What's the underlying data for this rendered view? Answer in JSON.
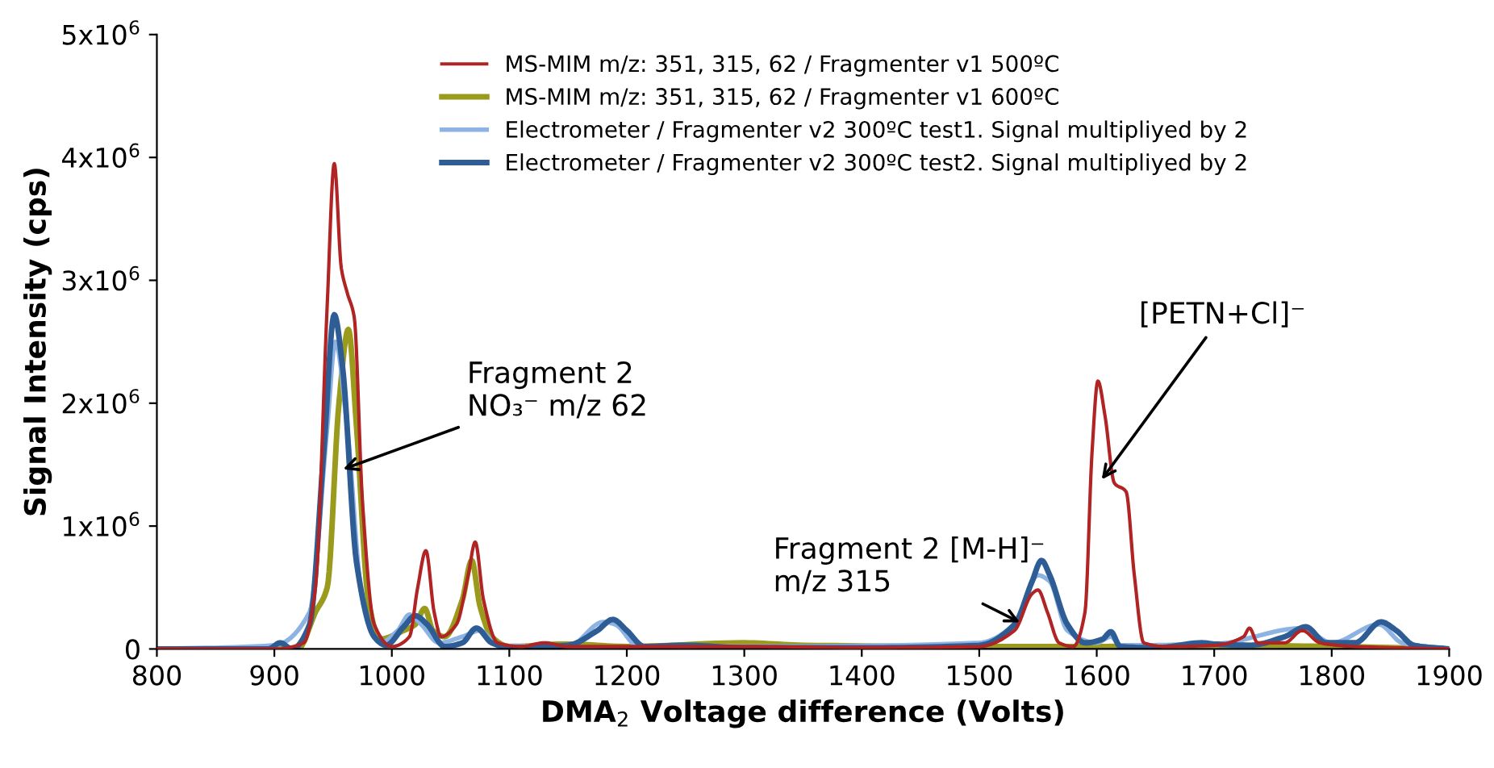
{
  "chart_data": {
    "type": "line",
    "xlabel": "DMA$_{2}$ Voltage difference (Volts)",
    "ylabel": "Signal Intensity (cps)",
    "xlim": [
      800,
      1900
    ],
    "xticks": [
      800,
      900,
      1000,
      1100,
      1200,
      1300,
      1400,
      1500,
      1600,
      1700,
      1800,
      1900
    ],
    "ylim": [
      0,
      5000000
    ],
    "yticks": [
      {
        "value": 0,
        "label": "0"
      },
      {
        "value": 1000000,
        "label": "1x10$^{6}$"
      },
      {
        "value": 2000000,
        "label": "2x10$^{6}$"
      },
      {
        "value": 3000000,
        "label": "3x10$^{6}$"
      },
      {
        "value": 4000000,
        "label": "4x10$^{6}$"
      },
      {
        "value": 5000000,
        "label": "5x10$^{6}$"
      }
    ],
    "grid": false,
    "legend": "top right",
    "marker": "none",
    "line_style": "solid",
    "series": [
      {
        "name": "MS-MIM m/z: 351, 315, 62 / Fragmenter v1 500ºC",
        "color": "#b02424",
        "x": [
          800,
          900,
          925,
          935,
          945,
          951,
          957,
          962,
          968,
          975,
          985,
          1000,
          1015,
          1022,
          1029,
          1036,
          1042,
          1055,
          1065,
          1071,
          1078,
          1090,
          1110,
          1130,
          1150,
          1200,
          1300,
          1400,
          1500,
          1530,
          1545,
          1550,
          1558,
          1568,
          1580,
          1590,
          1596,
          1601,
          1607,
          1615,
          1625,
          1632,
          1640,
          1660,
          1700,
          1725,
          1730,
          1737,
          1760,
          1775,
          1790,
          1820,
          1900
        ],
        "values": [
          0,
          0,
          50000,
          500000,
          2800000,
          3950000,
          3100000,
          2900000,
          2700000,
          1200000,
          200000,
          20000,
          100000,
          500000,
          800000,
          300000,
          100000,
          200000,
          600000,
          870000,
          400000,
          50000,
          20000,
          50000,
          20000,
          20000,
          20000,
          10000,
          20000,
          150000,
          450000,
          480000,
          300000,
          50000,
          20000,
          300000,
          1600000,
          2180000,
          1900000,
          1350000,
          1280000,
          600000,
          50000,
          20000,
          30000,
          100000,
          170000,
          50000,
          50000,
          150000,
          50000,
          20000,
          0
        ]
      },
      {
        "name": "MS-MIM m/z: 351, 315, 62 / Fragmenter v1 600ºC",
        "color": "#9a9a1c",
        "x": [
          800,
          920,
          935,
          945,
          955,
          963,
          970,
          980,
          990,
          1010,
          1020,
          1028,
          1035,
          1045,
          1060,
          1068,
          1075,
          1085,
          1100,
          1150,
          1200,
          1300,
          1350,
          1500,
          1600,
          1700,
          1800,
          1900
        ],
        "values": [
          0,
          0,
          300000,
          500000,
          2000000,
          2600000,
          1800000,
          400000,
          80000,
          150000,
          200000,
          330000,
          150000,
          100000,
          400000,
          720000,
          350000,
          100000,
          20000,
          40000,
          20000,
          50000,
          30000,
          20000,
          20000,
          30000,
          20000,
          0
        ]
      },
      {
        "name": "Electrometer / Fragmenter v2 300ºC test1. Signal multipliyed by 2",
        "color": "#8db3e2",
        "x": [
          800,
          900,
          930,
          945,
          952,
          962,
          975,
          990,
          1005,
          1015,
          1025,
          1040,
          1060,
          1075,
          1090,
          1150,
          1180,
          1190,
          1210,
          1300,
          1500,
          1530,
          1550,
          1560,
          1575,
          1600,
          1612,
          1620,
          1700,
          1775,
          1800,
          1840,
          1860,
          1900
        ],
        "values": [
          0,
          30000,
          300000,
          1800000,
          2500000,
          1800000,
          400000,
          50000,
          150000,
          280000,
          200000,
          50000,
          100000,
          150000,
          30000,
          20000,
          220000,
          200000,
          20000,
          20000,
          50000,
          200000,
          600000,
          550000,
          150000,
          50000,
          100000,
          30000,
          40000,
          170000,
          50000,
          200000,
          50000,
          0
        ]
      },
      {
        "name": "Electrometer / Fragmenter v2 300ºC test2. Signal multipliyed by 2",
        "color": "#2e5d96",
        "x": [
          800,
          895,
          905,
          915,
          930,
          942,
          951,
          958,
          970,
          985,
          995,
          1010,
          1020,
          1030,
          1045,
          1060,
          1072,
          1085,
          1100,
          1150,
          1175,
          1188,
          1200,
          1215,
          1250,
          1300,
          1400,
          1500,
          1530,
          1545,
          1553,
          1560,
          1575,
          1590,
          1605,
          1612,
          1620,
          1650,
          1690,
          1700,
          1730,
          1760,
          1778,
          1795,
          1820,
          1842,
          1855,
          1870,
          1900
        ],
        "values": [
          0,
          0,
          50000,
          0,
          200000,
          1600000,
          2720000,
          2300000,
          700000,
          100000,
          30000,
          180000,
          270000,
          200000,
          20000,
          50000,
          170000,
          50000,
          10000,
          30000,
          150000,
          240000,
          150000,
          20000,
          30000,
          10000,
          10000,
          30000,
          200000,
          550000,
          720000,
          600000,
          200000,
          50000,
          80000,
          140000,
          20000,
          10000,
          50000,
          40000,
          30000,
          100000,
          180000,
          50000,
          50000,
          220000,
          150000,
          30000,
          0
        ]
      }
    ],
    "annotations": [
      {
        "text": "Fragment 2\nNO₃⁻ m/z 62",
        "x": 955,
        "y": 1450000
      },
      {
        "text": "Fragment 2 [M-H]⁻\nm/z 315",
        "x": 1538,
        "y": 200000
      },
      {
        "text": "[PETN+Cl]⁻",
        "x": 1602,
        "y": 1350000
      }
    ]
  }
}
